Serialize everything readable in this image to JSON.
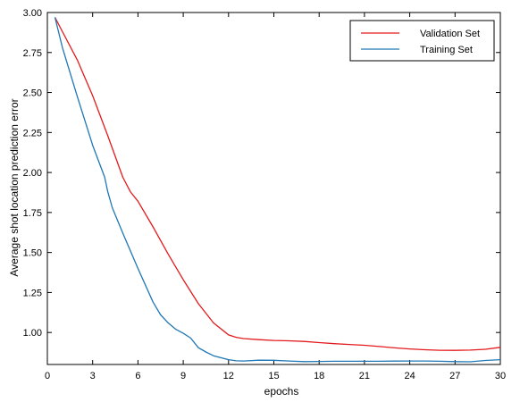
{
  "chart_data": {
    "type": "line",
    "title": "",
    "xlabel": "epochs",
    "ylabel": "Average shot location prediction error",
    "xlim": [
      0,
      30
    ],
    "ylim": [
      0.8,
      3.0
    ],
    "xticks": [
      0,
      3,
      6,
      9,
      12,
      15,
      18,
      21,
      24,
      27,
      30
    ],
    "xtick_labels": [
      "0",
      "3",
      "6",
      "9",
      "12",
      "15",
      "18",
      "21",
      "24",
      "27",
      "30"
    ],
    "yticks": [
      1.0,
      1.25,
      1.5,
      1.75,
      2.0,
      2.25,
      2.5,
      2.75,
      3.0
    ],
    "ytick_labels": [
      "1.00",
      "1.25",
      "1.50",
      "1.75",
      "2.00",
      "2.25",
      "2.50",
      "2.75",
      "3.00"
    ],
    "grid": false,
    "legend_position": "top-right",
    "series": [
      {
        "name": "Validation Set",
        "color": "#e31a1c",
        "x": [
          0.5,
          1,
          2,
          3,
          4,
          5,
          5.5,
          6,
          7,
          8,
          9,
          10,
          11,
          12,
          12.5,
          13,
          14,
          15,
          16,
          17,
          18,
          19,
          20,
          21,
          22,
          23,
          24,
          25,
          26,
          27,
          28,
          29,
          30
        ],
        "y": [
          2.97,
          2.88,
          2.7,
          2.48,
          2.23,
          1.97,
          1.88,
          1.82,
          1.66,
          1.49,
          1.33,
          1.18,
          1.06,
          0.985,
          0.97,
          0.962,
          0.955,
          0.95,
          0.948,
          0.944,
          0.937,
          0.93,
          0.925,
          0.92,
          0.912,
          0.904,
          0.897,
          0.892,
          0.889,
          0.888,
          0.89,
          0.895,
          0.907
        ]
      },
      {
        "name": "Training Set",
        "color": "#1f77b4",
        "x": [
          0.5,
          1,
          2,
          3,
          3.8,
          4,
          4.3,
          5,
          6,
          7,
          7.5,
          8,
          8.5,
          9,
          9.5,
          10,
          10.5,
          11,
          12,
          12.5,
          13,
          14,
          15,
          16,
          17,
          18,
          19,
          20,
          21,
          22,
          23,
          24,
          25,
          26,
          27,
          28,
          29,
          30
        ],
        "y": [
          2.97,
          2.78,
          2.47,
          2.17,
          1.97,
          1.88,
          1.78,
          1.62,
          1.4,
          1.19,
          1.11,
          1.06,
          1.02,
          0.995,
          0.965,
          0.905,
          0.878,
          0.855,
          0.83,
          0.823,
          0.822,
          0.827,
          0.826,
          0.822,
          0.818,
          0.819,
          0.82,
          0.82,
          0.82,
          0.82,
          0.821,
          0.822,
          0.822,
          0.82,
          0.818,
          0.817,
          0.825,
          0.83
        ]
      }
    ]
  }
}
